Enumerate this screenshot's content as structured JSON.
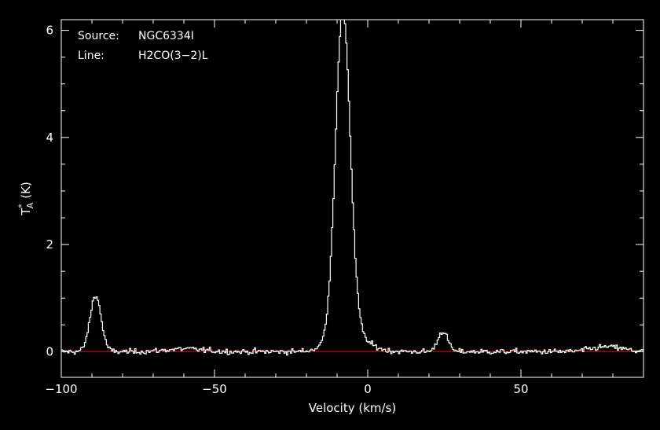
{
  "chart_data": {
    "type": "line",
    "xlabel": "Velocity (km/s)",
    "ylabel_base": "T",
    "ylabel_sup": "*",
    "ylabel_sub": "A",
    "ylabel_unit": "(K)",
    "xlim": [
      -100,
      90
    ],
    "ylim": [
      -0.48,
      6.2
    ],
    "x_ticks": [
      -100,
      -50,
      0,
      50
    ],
    "x_tick_labels": [
      "−100",
      "−50",
      "0",
      "50"
    ],
    "y_ticks": [
      0,
      2,
      4,
      6
    ],
    "y_tick_labels": [
      "0",
      "2",
      "4",
      "6"
    ],
    "baseline": 0,
    "colors": {
      "background": "#000000",
      "spectrum": "#ffffff",
      "baseline": "#cc0000",
      "axes": "#ffffff"
    },
    "legend": {
      "source_label": "Source:",
      "source_value": "NGC6334I",
      "line_label": "Line:",
      "line_value": "H2CO(3−2)L"
    },
    "spectrum_components": [
      {
        "center": -89,
        "amplitude": 1.05,
        "width": 1.8
      },
      {
        "center": -8.3,
        "amplitude": 6.05,
        "width": 2.4
      },
      {
        "center": -6.5,
        "amplitude": 0.35,
        "width": 5.5
      },
      {
        "center": 24.3,
        "amplitude": 0.38,
        "width": 1.6
      },
      {
        "center": -60,
        "amplitude": 0.05,
        "width": 6
      },
      {
        "center": 78,
        "amplitude": 0.09,
        "width": 5
      }
    ],
    "noise_rms": 0.025,
    "channel_width": 0.42
  }
}
